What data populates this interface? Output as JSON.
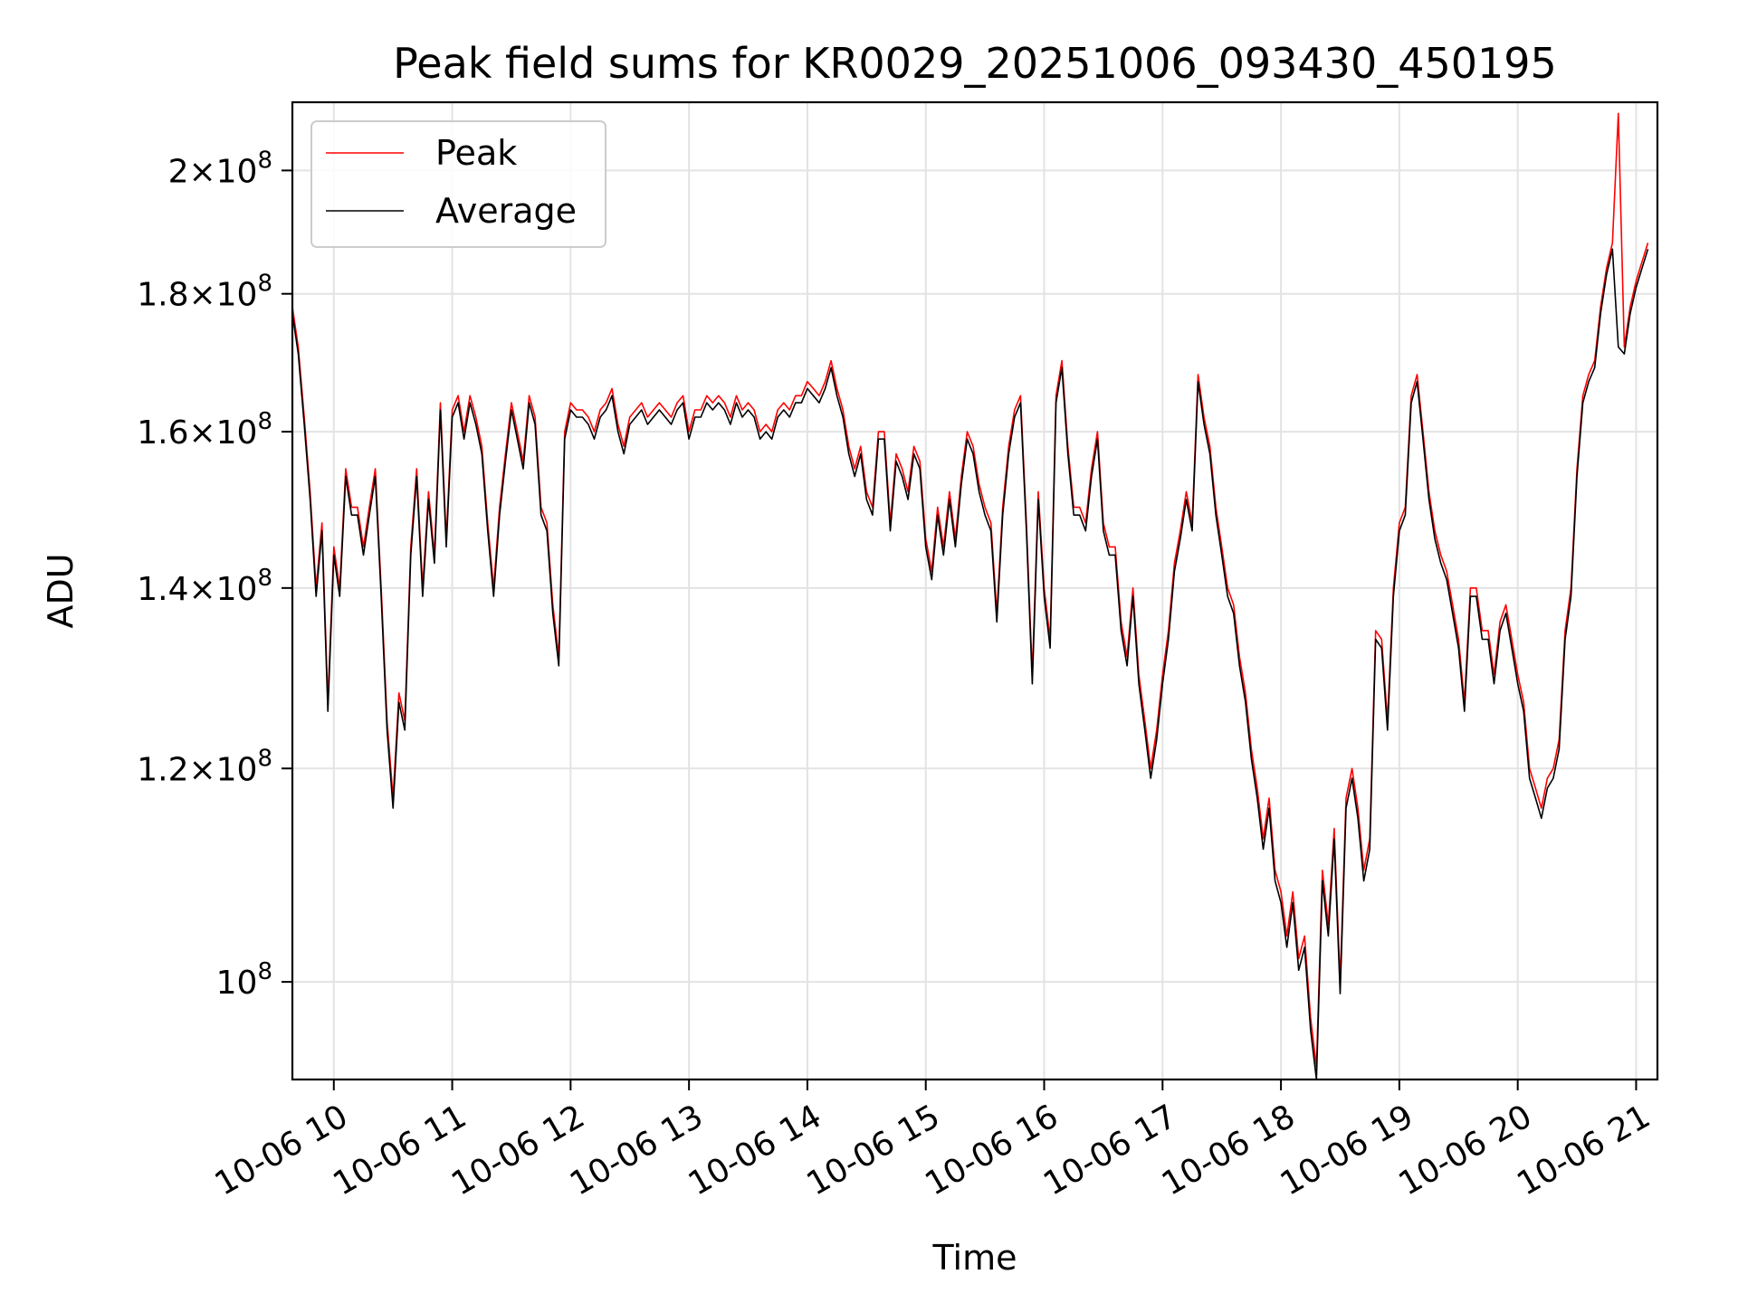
{
  "chart_data": {
    "type": "line",
    "title": "Peak field sums for KR0029_20251006_093430_450195",
    "xlabel": "Time",
    "ylabel": "ADU",
    "yscale": "log",
    "ylim": [
      92000000,
      212000000
    ],
    "xlim_hours": [
      9.65,
      21.18
    ],
    "grid": true,
    "legend_position": "upper-left",
    "x_ticks": [
      {
        "hour": 10,
        "label": "10-06 10"
      },
      {
        "hour": 11,
        "label": "10-06 11"
      },
      {
        "hour": 12,
        "label": "10-06 12"
      },
      {
        "hour": 13,
        "label": "10-06 13"
      },
      {
        "hour": 14,
        "label": "10-06 14"
      },
      {
        "hour": 15,
        "label": "10-06 15"
      },
      {
        "hour": 16,
        "label": "10-06 16"
      },
      {
        "hour": 17,
        "label": "10-06 17"
      },
      {
        "hour": 18,
        "label": "10-06 18"
      },
      {
        "hour": 19,
        "label": "10-06 19"
      },
      {
        "hour": 20,
        "label": "10-06 20"
      },
      {
        "hour": 21,
        "label": "10-06 21"
      }
    ],
    "y_ticks": [
      {
        "value": 100000000,
        "mantissa": "",
        "exponent": "8"
      },
      {
        "value": 120000000,
        "mantissa": "1.2",
        "exponent": "8"
      },
      {
        "value": 140000000,
        "mantissa": "1.4",
        "exponent": "8"
      },
      {
        "value": 160000000,
        "mantissa": "1.6",
        "exponent": "8"
      },
      {
        "value": 180000000,
        "mantissa": "1.8",
        "exponent": "8"
      },
      {
        "value": 200000000,
        "mantissa": "2",
        "exponent": "8"
      }
    ],
    "x_hours": [
      9.65,
      9.7,
      9.75,
      9.8,
      9.85,
      9.9,
      9.95,
      10.0,
      10.05,
      10.1,
      10.15,
      10.2,
      10.25,
      10.3,
      10.35,
      10.4,
      10.45,
      10.5,
      10.55,
      10.6,
      10.65,
      10.7,
      10.75,
      10.8,
      10.85,
      10.9,
      10.95,
      11.0,
      11.05,
      11.1,
      11.15,
      11.2,
      11.25,
      11.3,
      11.35,
      11.4,
      11.45,
      11.5,
      11.55,
      11.6,
      11.65,
      11.7,
      11.75,
      11.8,
      11.85,
      11.9,
      11.95,
      12.0,
      12.05,
      12.1,
      12.15,
      12.2,
      12.25,
      12.3,
      12.35,
      12.4,
      12.45,
      12.5,
      12.55,
      12.6,
      12.65,
      12.7,
      12.75,
      12.8,
      12.85,
      12.9,
      12.95,
      13.0,
      13.05,
      13.1,
      13.15,
      13.2,
      13.25,
      13.3,
      13.35,
      13.4,
      13.45,
      13.5,
      13.55,
      13.6,
      13.65,
      13.7,
      13.75,
      13.8,
      13.85,
      13.9,
      13.95,
      14.0,
      14.05,
      14.1,
      14.15,
      14.2,
      14.25,
      14.3,
      14.35,
      14.4,
      14.45,
      14.5,
      14.55,
      14.6,
      14.65,
      14.7,
      14.75,
      14.8,
      14.85,
      14.9,
      14.95,
      15.0,
      15.05,
      15.1,
      15.15,
      15.2,
      15.25,
      15.3,
      15.35,
      15.4,
      15.45,
      15.5,
      15.55,
      15.6,
      15.65,
      15.7,
      15.75,
      15.8,
      15.85,
      15.9,
      15.95,
      16.0,
      16.05,
      16.1,
      16.15,
      16.2,
      16.25,
      16.3,
      16.35,
      16.4,
      16.45,
      16.5,
      16.55,
      16.6,
      16.65,
      16.7,
      16.75,
      16.8,
      16.85,
      16.9,
      16.95,
      17.0,
      17.05,
      17.1,
      17.15,
      17.2,
      17.25,
      17.3,
      17.35,
      17.4,
      17.45,
      17.5,
      17.55,
      17.6,
      17.65,
      17.7,
      17.75,
      17.8,
      17.85,
      17.9,
      17.95,
      18.0,
      18.05,
      18.1,
      18.15,
      18.2,
      18.25,
      18.3,
      18.35,
      18.4,
      18.45,
      18.5,
      18.55,
      18.6,
      18.65,
      18.7,
      18.75,
      18.8,
      18.85,
      18.9,
      18.95,
      19.0,
      19.05,
      19.1,
      19.15,
      19.2,
      19.25,
      19.3,
      19.35,
      19.4,
      19.45,
      19.5,
      19.55,
      19.6,
      19.65,
      19.7,
      19.75,
      19.8,
      19.85,
      19.9,
      19.95,
      20.0,
      20.05,
      20.1,
      20.15,
      20.2,
      20.25,
      20.3,
      20.35,
      20.4,
      20.45,
      20.5,
      20.55,
      20.6,
      20.65,
      20.7,
      20.75,
      20.8,
      20.85,
      20.9,
      20.95,
      21.0,
      21.05,
      21.1,
      21.15
    ],
    "series": [
      {
        "name": "Peak",
        "color": "#ff0000",
        "values": [
          178,
          172,
          162,
          152,
          140,
          148,
          127,
          145,
          140,
          155,
          150,
          150,
          145,
          150,
          155,
          140,
          125,
          117,
          128,
          125,
          145,
          155,
          140,
          152,
          144,
          164,
          146,
          163,
          165,
          160,
          165,
          162,
          158,
          148,
          140,
          150,
          157,
          164,
          160,
          156,
          165,
          162,
          150,
          148,
          138,
          132,
          160,
          164,
          163,
          163,
          162,
          160,
          163,
          164,
          166,
          161,
          158,
          162,
          163,
          164,
          162,
          163,
          164,
          163,
          162,
          164,
          165,
          160,
          163,
          163,
          165,
          164,
          165,
          164,
          162,
          165,
          163,
          164,
          163,
          160,
          161,
          160,
          163,
          164,
          163,
          165,
          165,
          167,
          166,
          165,
          167,
          170,
          166,
          163,
          158,
          155,
          158,
          152,
          150,
          160,
          160,
          148,
          157,
          155,
          152,
          158,
          156,
          146,
          142,
          150,
          145,
          152,
          146,
          154,
          160,
          158,
          153,
          150,
          148,
          137,
          150,
          158,
          163,
          165,
          148,
          130,
          152,
          140,
          134,
          165,
          170,
          158,
          150,
          150,
          148,
          155,
          160,
          148,
          145,
          145,
          136,
          132,
          140,
          130,
          125,
          120,
          124,
          130,
          135,
          143,
          147,
          152,
          148,
          168,
          162,
          158,
          150,
          145,
          140,
          138,
          132,
          128,
          122,
          118,
          113,
          117,
          110,
          108,
          104,
          108,
          102,
          104,
          97,
          93,
          110,
          105,
          114,
          100,
          117,
          120,
          116,
          110,
          113,
          135,
          134,
          125,
          140,
          148,
          150,
          165,
          168,
          160,
          152,
          147,
          144,
          142,
          138,
          134,
          127,
          140,
          140,
          135,
          135,
          130,
          136,
          138,
          134,
          130,
          127,
          120,
          118,
          116,
          119,
          120,
          123,
          135,
          140,
          155,
          165,
          168,
          170,
          178,
          184,
          188,
          210,
          172,
          178,
          182,
          185,
          188
        ],
        "style": "thin line"
      },
      {
        "name": "Average",
        "color": "#000000",
        "values": [
          177,
          171,
          161,
          151,
          139,
          147,
          126,
          144,
          139,
          154,
          149,
          149,
          144,
          149,
          154,
          139,
          124,
          116,
          127,
          124,
          144,
          154,
          139,
          151,
          143,
          163,
          145,
          162,
          164,
          159,
          164,
          161,
          157,
          147,
          139,
          149,
          156,
          163,
          159,
          155,
          164,
          161,
          149,
          147,
          137,
          131,
          159,
          163,
          162,
          162,
          161,
          159,
          162,
          163,
          165,
          160,
          157,
          161,
          162,
          163,
          161,
          162,
          163,
          162,
          161,
          163,
          164,
          159,
          162,
          162,
          164,
          163,
          164,
          163,
          161,
          164,
          162,
          163,
          162,
          159,
          160,
          159,
          162,
          163,
          162,
          164,
          164,
          166,
          165,
          164,
          166,
          169,
          165,
          162,
          157,
          154,
          157,
          151,
          149,
          159,
          159,
          147,
          156,
          154,
          151,
          157,
          155,
          145,
          141,
          149,
          144,
          151,
          145,
          153,
          159,
          157,
          152,
          149,
          147,
          136,
          149,
          157,
          162,
          164,
          147,
          129,
          151,
          139,
          133,
          164,
          169,
          157,
          149,
          149,
          147,
          154,
          159,
          147,
          144,
          144,
          135,
          131,
          139,
          129,
          124,
          119,
          123,
          129,
          134,
          142,
          146,
          151,
          147,
          167,
          161,
          157,
          149,
          144,
          139,
          137,
          131,
          127,
          121,
          117,
          112,
          116,
          109,
          107,
          103,
          107,
          101,
          103,
          96,
          92,
          109,
          104,
          113,
          99,
          116,
          119,
          115,
          109,
          112,
          134,
          133,
          124,
          139,
          147,
          149,
          164,
          167,
          159,
          151,
          146,
          143,
          141,
          137,
          133,
          126,
          139,
          139,
          134,
          134,
          129,
          135,
          137,
          133,
          129,
          126,
          119,
          117,
          115,
          118,
          119,
          122,
          134,
          139,
          154,
          164,
          167,
          169,
          177,
          183,
          187,
          172,
          171,
          177,
          181,
          184,
          187
        ],
        "style": "thin line"
      }
    ],
    "values_unit": "millions of ADU"
  }
}
